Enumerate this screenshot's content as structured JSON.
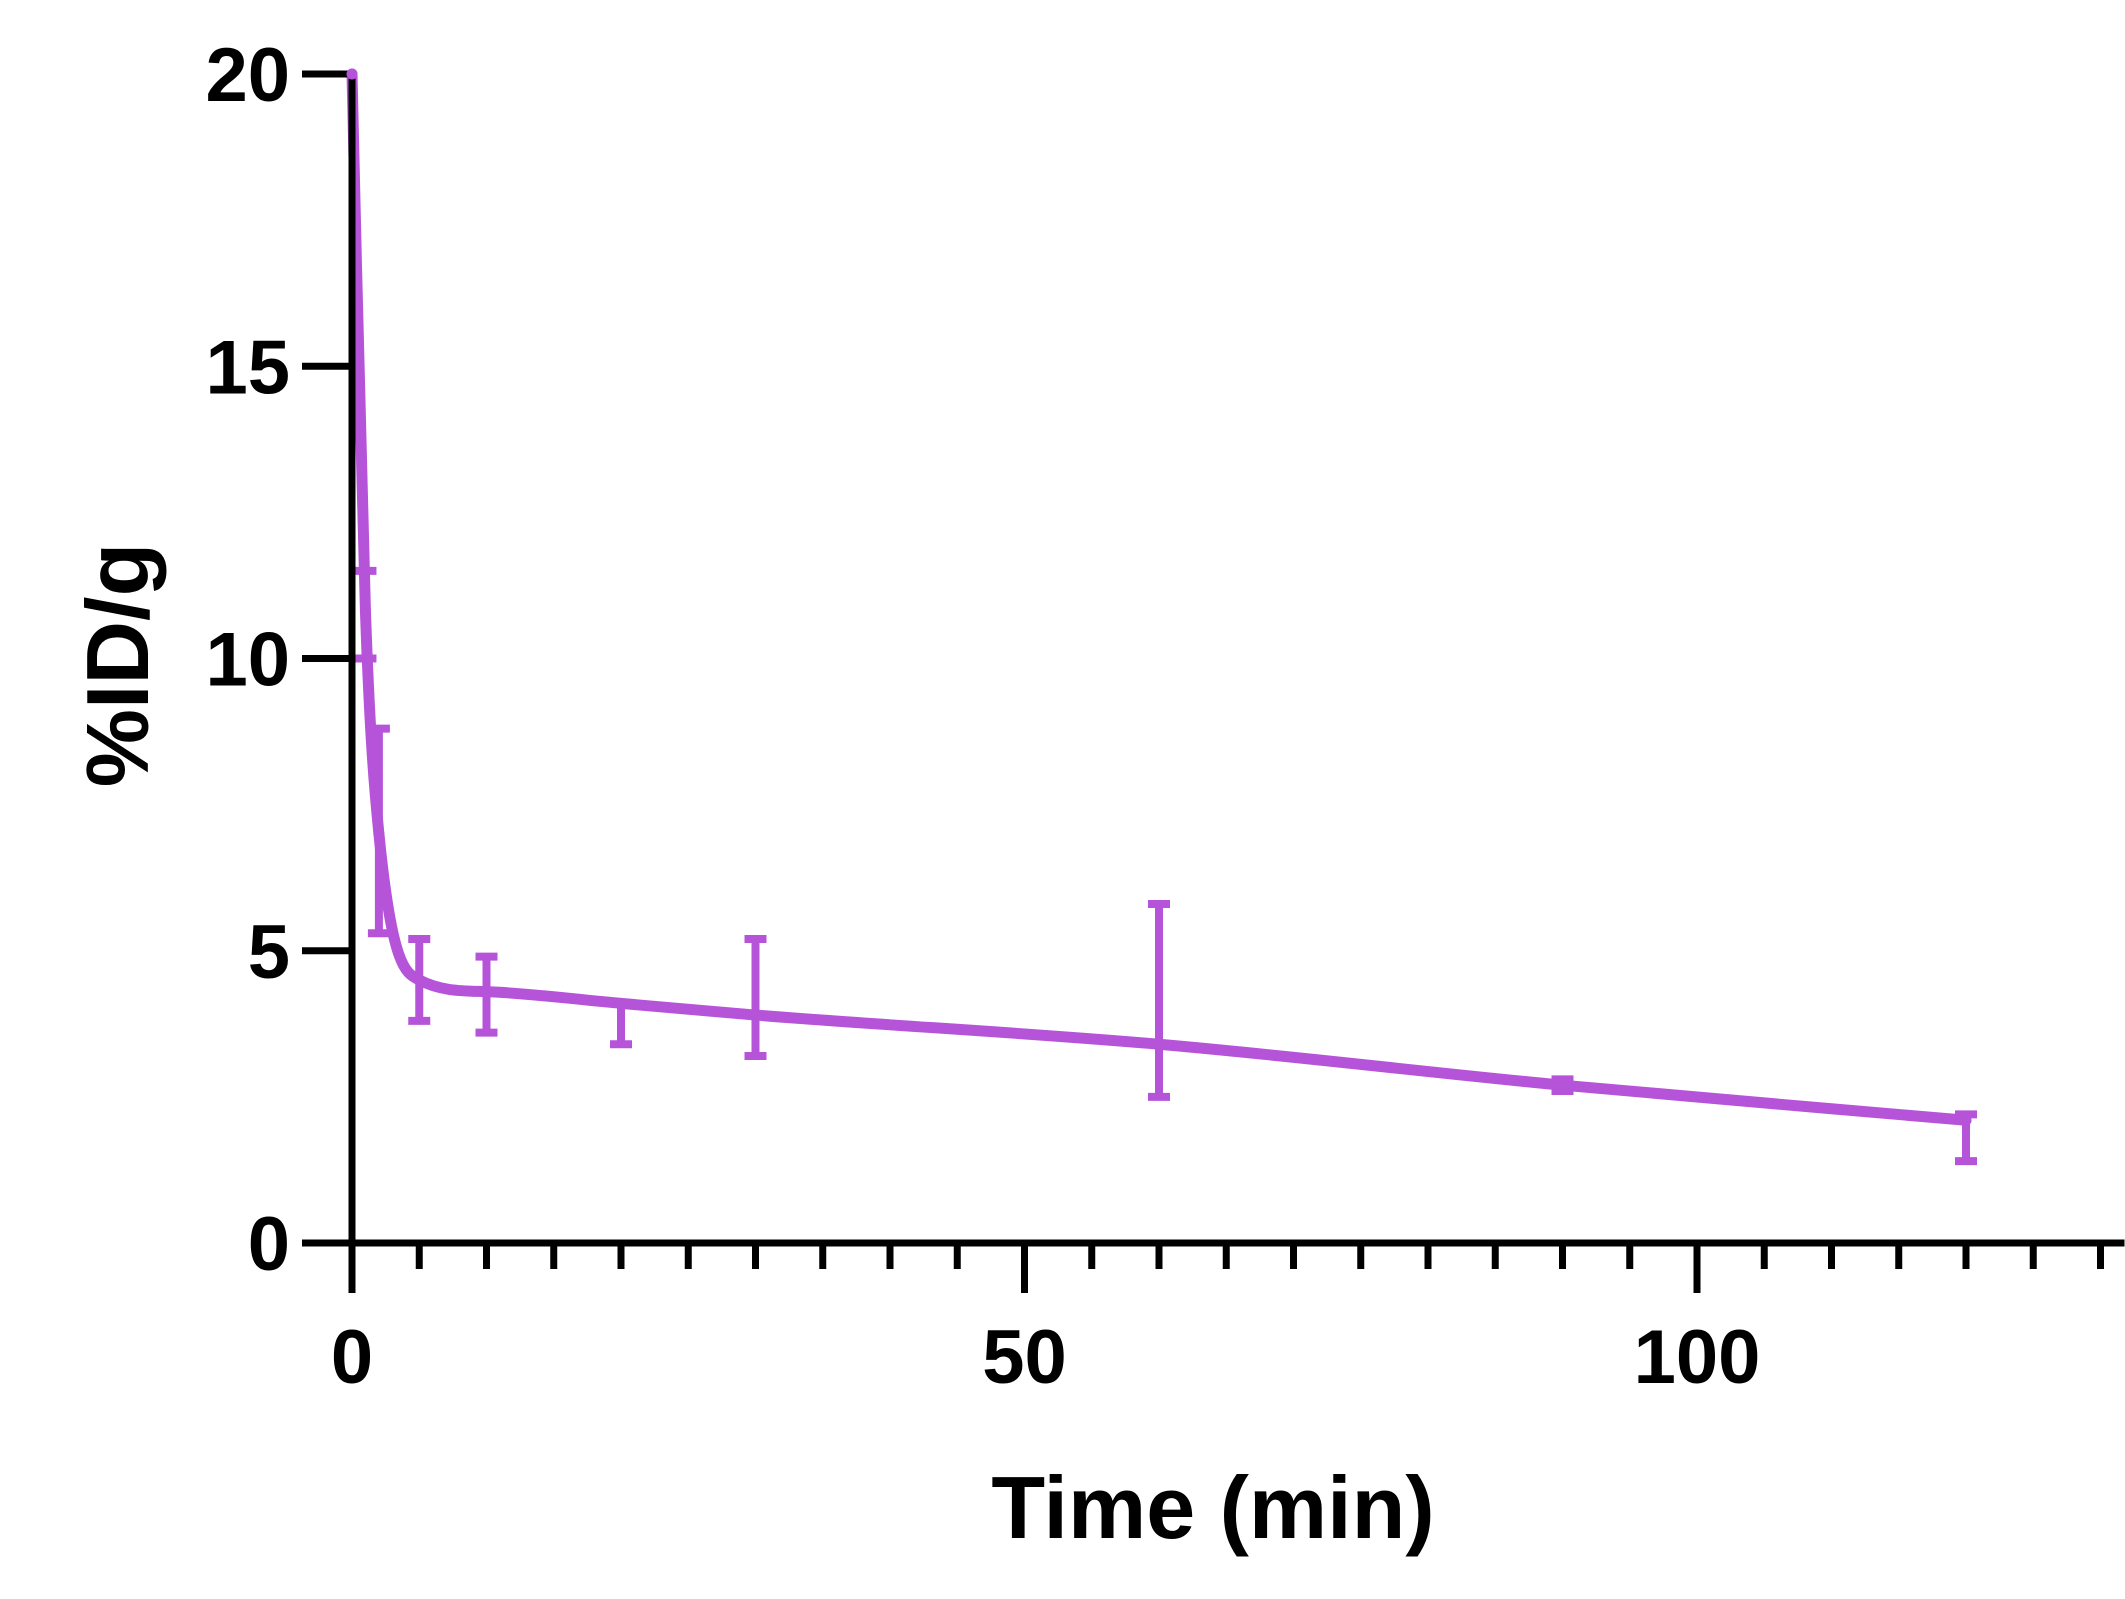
{
  "chart_data": {
    "type": "line",
    "title": "",
    "xlabel": "Time (min)",
    "ylabel": "%ID/g",
    "xlim": [
      0,
      130
    ],
    "ylim": [
      0,
      20
    ],
    "x_ticks": [
      0,
      50,
      100
    ],
    "x_tick_labels": [
      "0",
      "50",
      "100"
    ],
    "x_minor_step": 5,
    "y_ticks": [
      0,
      5,
      10,
      15,
      20
    ],
    "y_tick_labels": [
      "0",
      "5",
      "10",
      "15",
      "20"
    ],
    "grid": false,
    "legend": "none",
    "colors": {
      "series": "#b654d9",
      "axis": "#000000"
    },
    "series": [
      {
        "points": [
          {
            "x": 0,
            "y": 20
          },
          {
            "x": 1,
            "y": 10.8,
            "err_low": 10.0,
            "err_high": 11.5
          },
          {
            "x": 2,
            "y": 7.0,
            "err_low": 5.3,
            "err_high": 8.8
          },
          {
            "x": 5,
            "y": 4.5,
            "err_low": 3.8,
            "err_high": 5.2
          },
          {
            "x": 10,
            "y": 4.3,
            "err_low": 3.6,
            "err_high": 4.9
          },
          {
            "x": 20,
            "y": 4.1,
            "err_low": 3.4,
            "err_high": 4.1
          },
          {
            "x": 30,
            "y": 3.9,
            "err_low": 3.2,
            "err_high": 5.2
          },
          {
            "x": 60,
            "y": 3.4,
            "err_low": 2.5,
            "err_high": 5.8
          },
          {
            "x": 90,
            "y": 2.7,
            "err_low": 2.6,
            "err_high": 2.8
          },
          {
            "x": 120,
            "y": 2.1,
            "err_low": 1.4,
            "err_high": 2.2
          }
        ]
      }
    ]
  }
}
